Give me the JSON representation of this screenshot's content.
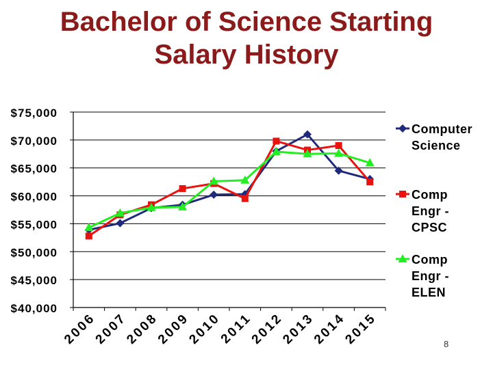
{
  "slide": {
    "title_line1": "Bachelor of Science Starting",
    "title_line2": "Salary History",
    "page_number": "8"
  },
  "colors": {
    "title": "#8B1A1A",
    "computer_science": "#1F2A7A",
    "cpsc": "#E8130E",
    "elen": "#22EE22"
  },
  "chart_data": {
    "type": "line",
    "title": "",
    "xlabel": "",
    "ylabel": "",
    "categories": [
      "2006",
      "2007",
      "2008",
      "2009",
      "2010",
      "2011",
      "2012",
      "2013",
      "2014",
      "2015"
    ],
    "ylim": [
      40000,
      75000
    ],
    "y_ticks": [
      "$75,000",
      "$70,000",
      "$65,000",
      "$60,000",
      "$55,000",
      "$50,000",
      "$45,000",
      "$40,000"
    ],
    "y_tick_values": [
      75000,
      70000,
      65000,
      60000,
      55000,
      50000,
      45000,
      40000
    ],
    "legend_position": "right",
    "grid": "horizontal",
    "series": [
      {
        "name_lines": [
          "Computer",
          "Science"
        ],
        "color": "#1F2A7A",
        "marker": "diamond",
        "values": [
          53900,
          55100,
          57800,
          58400,
          60200,
          60300,
          68000,
          71000,
          64500,
          63000
        ]
      },
      {
        "name_lines": [
          "Comp",
          "Engr -",
          "CPSC"
        ],
        "color": "#E8130E",
        "marker": "square",
        "values": [
          52800,
          56600,
          58400,
          61300,
          62200,
          59500,
          69800,
          68200,
          69000,
          62500
        ]
      },
      {
        "name_lines": [
          "Comp",
          "Engr -",
          "ELEN"
        ],
        "color": "#22EE22",
        "marker": "triangle",
        "values": [
          54300,
          56900,
          57900,
          58000,
          62600,
          62800,
          67900,
          67500,
          67600,
          65900
        ]
      }
    ]
  }
}
